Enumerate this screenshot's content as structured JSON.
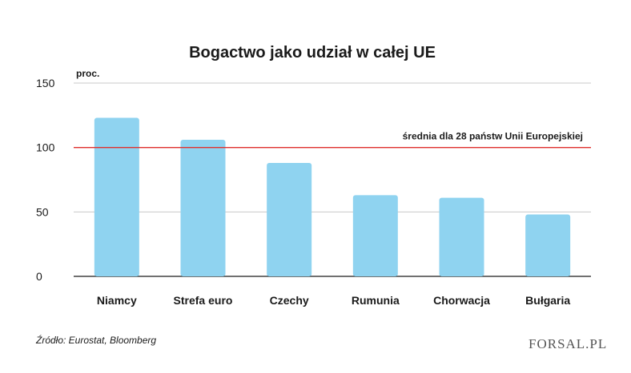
{
  "chart_data": {
    "type": "bar",
    "title": "Bogactwo jako udział w całej UE",
    "ylabel": "proc.",
    "xlabel": "",
    "categories": [
      "Niamcy",
      "Strefa euro",
      "Czechy",
      "Rumunia",
      "Chorwacja",
      "Bułgaria"
    ],
    "values": [
      123,
      106,
      88,
      63,
      61,
      48
    ],
    "ylim": [
      0,
      150
    ],
    "yticks": [
      0,
      50,
      100,
      150
    ],
    "grid": true,
    "reference_line": {
      "value": 100,
      "label": "średnia dla 28 państw Unii Europejskiej",
      "color": "#e0302e"
    },
    "bar_color": "#8fd3f0",
    "source": "Źródło: Eurostat, Bloomberg"
  },
  "branding": {
    "logo_text": "FORSAL.PL"
  }
}
